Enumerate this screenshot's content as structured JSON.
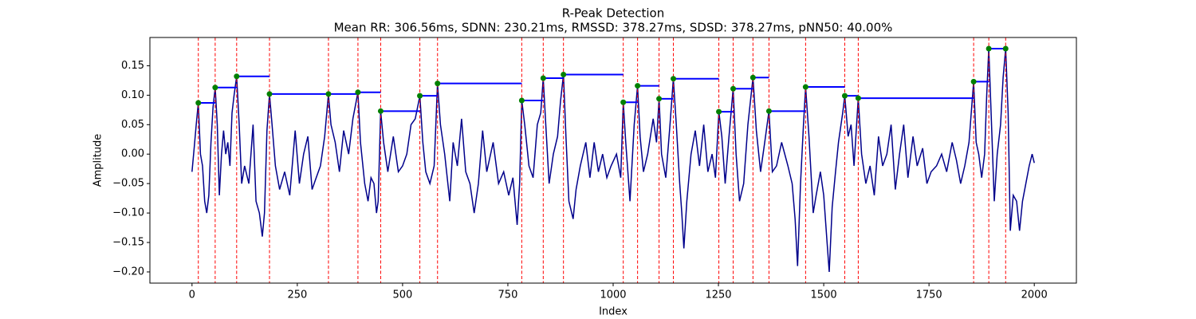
{
  "chart_data": {
    "type": "line",
    "title": "R-Peak Detection",
    "subtitle": "Mean RR: 306.56ms, SDNN: 230.21ms, RMSSD: 378.27ms, SDSD: 378.27ms, pNN50: 40.00%",
    "x_label": "Index",
    "y_label": "Amplitude",
    "xlim": [
      -100,
      2100
    ],
    "ylim": [
      -0.219,
      0.198
    ],
    "xticks": [
      0,
      250,
      500,
      750,
      1000,
      1250,
      1500,
      1750,
      2000
    ],
    "yticks": [
      {
        "value": -0.2,
        "label": "−0.20"
      },
      {
        "value": -0.15,
        "label": "−0.15"
      },
      {
        "value": -0.1,
        "label": "−0.10"
      },
      {
        "value": -0.05,
        "label": "−0.05"
      },
      {
        "value": 0,
        "label": "0.00"
      },
      {
        "value": 0.05,
        "label": "0.05"
      },
      {
        "value": 0.1,
        "label": "0.10"
      },
      {
        "value": 0.15,
        "label": "0.15"
      }
    ],
    "signal": {
      "color": "#00008b",
      "x": [
        0,
        5,
        10,
        15,
        20,
        25,
        30,
        35,
        40,
        45,
        50,
        55,
        60,
        65,
        70,
        75,
        80,
        85,
        90,
        95,
        100,
        106,
        112,
        118,
        125,
        135,
        145,
        152,
        160,
        167,
        172,
        178,
        184,
        190,
        198,
        208,
        220,
        232,
        245,
        255,
        265,
        275,
        285,
        295,
        305,
        315,
        324,
        330,
        340,
        350,
        360,
        372,
        382,
        394,
        400,
        410,
        418,
        425,
        432,
        438,
        442,
        448,
        455,
        465,
        478,
        490,
        500,
        510,
        520,
        530,
        541,
        548,
        555,
        565,
        575,
        583,
        590,
        600,
        612,
        620,
        630,
        640,
        650,
        660,
        670,
        680,
        690,
        700,
        715,
        728,
        740,
        752,
        762,
        772,
        778,
        783,
        790,
        800,
        810,
        820,
        828,
        834,
        840,
        848,
        858,
        868,
        875,
        882,
        888,
        895,
        905,
        912,
        922,
        935,
        945,
        955,
        965,
        975,
        985,
        995,
        1008,
        1018,
        1024,
        1030,
        1040,
        1050,
        1058,
        1064,
        1072,
        1082,
        1095,
        1103,
        1109,
        1115,
        1125,
        1135,
        1143,
        1150,
        1158,
        1163,
        1168,
        1175,
        1185,
        1195,
        1205,
        1215,
        1225,
        1235,
        1243,
        1251,
        1258,
        1266,
        1275,
        1285,
        1292,
        1300,
        1310,
        1320,
        1332,
        1340,
        1350,
        1360,
        1370,
        1378,
        1388,
        1400,
        1415,
        1425,
        1432,
        1438,
        1445,
        1452,
        1457,
        1465,
        1475,
        1482,
        1492,
        1500,
        1508,
        1513,
        1520,
        1528,
        1535,
        1545,
        1550,
        1558,
        1565,
        1572,
        1582,
        1590,
        1600,
        1610,
        1620,
        1630,
        1640,
        1650,
        1660,
        1670,
        1680,
        1690,
        1700,
        1712,
        1722,
        1735,
        1745,
        1755,
        1768,
        1780,
        1792,
        1805,
        1815,
        1825,
        1835,
        1845,
        1856,
        1862,
        1868,
        1875,
        1882,
        1887,
        1892,
        1898,
        1905,
        1912,
        1920,
        1926,
        1932,
        1938,
        1943,
        1950,
        1958,
        1965,
        1972,
        1980,
        1988,
        1995,
        2000
      ],
      "values": [
        -0.03,
        0.01,
        0.05,
        0.087,
        0.0,
        -0.02,
        -0.08,
        -0.1,
        -0.07,
        0.02,
        0.08,
        0.113,
        0.05,
        -0.07,
        0.0,
        0.04,
        0.0,
        0.02,
        -0.02,
        0.07,
        0.1,
        0.132,
        0.05,
        -0.05,
        -0.02,
        -0.05,
        0.05,
        -0.08,
        -0.1,
        -0.14,
        -0.1,
        0.04,
        0.102,
        0.05,
        -0.02,
        -0.06,
        -0.03,
        -0.07,
        0.04,
        -0.05,
        0.0,
        0.03,
        -0.06,
        -0.04,
        -0.02,
        0.03,
        0.102,
        0.05,
        0.02,
        -0.03,
        0.04,
        0.0,
        0.06,
        0.105,
        0.02,
        -0.05,
        -0.08,
        -0.04,
        -0.05,
        -0.1,
        -0.08,
        0.073,
        0.02,
        -0.03,
        0.03,
        -0.03,
        -0.02,
        0.0,
        0.05,
        0.06,
        0.099,
        0.02,
        -0.03,
        -0.05,
        -0.02,
        0.12,
        0.05,
        0.0,
        -0.08,
        0.02,
        -0.02,
        0.06,
        -0.03,
        -0.05,
        -0.1,
        -0.05,
        0.04,
        -0.03,
        0.02,
        -0.05,
        -0.03,
        -0.07,
        -0.04,
        -0.12,
        -0.05,
        0.091,
        0.05,
        -0.02,
        -0.04,
        0.05,
        0.07,
        0.129,
        0.05,
        -0.05,
        0.0,
        0.03,
        0.09,
        0.135,
        0.03,
        -0.08,
        -0.11,
        -0.06,
        -0.02,
        0.02,
        -0.04,
        0.02,
        -0.03,
        0.0,
        -0.04,
        -0.02,
        0.0,
        -0.04,
        0.088,
        0.02,
        -0.08,
        0.05,
        0.116,
        0.03,
        -0.03,
        0.0,
        0.06,
        0.02,
        0.094,
        0.0,
        -0.04,
        0.05,
        0.128,
        0.05,
        -0.05,
        -0.1,
        -0.16,
        -0.08,
        0.0,
        0.04,
        -0.02,
        0.05,
        -0.03,
        0.0,
        -0.04,
        0.072,
        0.03,
        -0.05,
        0.03,
        0.111,
        0.0,
        -0.08,
        -0.05,
        0.05,
        0.13,
        0.04,
        -0.03,
        0.02,
        0.073,
        -0.03,
        -0.02,
        0.02,
        -0.02,
        -0.05,
        -0.11,
        -0.19,
        -0.05,
        0.05,
        0.114,
        0.03,
        -0.1,
        -0.07,
        -0.03,
        -0.07,
        -0.15,
        -0.2,
        -0.09,
        -0.03,
        0.02,
        0.07,
        0.099,
        0.03,
        0.05,
        -0.02,
        0.095,
        0.0,
        -0.05,
        -0.02,
        -0.07,
        0.03,
        -0.02,
        0.0,
        0.05,
        -0.06,
        0.0,
        0.05,
        -0.04,
        0.03,
        -0.02,
        0.01,
        -0.05,
        -0.03,
        -0.02,
        0.0,
        -0.03,
        0.02,
        -0.01,
        -0.05,
        -0.02,
        0.02,
        0.123,
        0.02,
        0.0,
        -0.04,
        0.0,
        0.1,
        0.179,
        0.06,
        -0.08,
        0.0,
        0.05,
        0.13,
        0.179,
        0.07,
        -0.13,
        -0.07,
        -0.08,
        -0.13,
        -0.08,
        -0.05,
        -0.02,
        0.0,
        -0.015
      ]
    },
    "peaks": {
      "color": "#008000",
      "line_color": "#ff0000",
      "interval_color": "#0000ff",
      "x": [
        15,
        55,
        106,
        184,
        324,
        394,
        448,
        541,
        583,
        783,
        834,
        882,
        1024,
        1058,
        1109,
        1143,
        1251,
        1285,
        1332,
        1370,
        1457,
        1550,
        1582,
        1856,
        1892,
        1932
      ],
      "values": [
        0.087,
        0.113,
        0.132,
        0.102,
        0.102,
        0.105,
        0.073,
        0.099,
        0.12,
        0.091,
        0.129,
        0.135,
        0.088,
        0.116,
        0.094,
        0.128,
        0.072,
        0.111,
        0.13,
        0.073,
        0.114,
        0.099,
        0.095,
        0.123,
        0.179,
        0.179
      ]
    }
  }
}
